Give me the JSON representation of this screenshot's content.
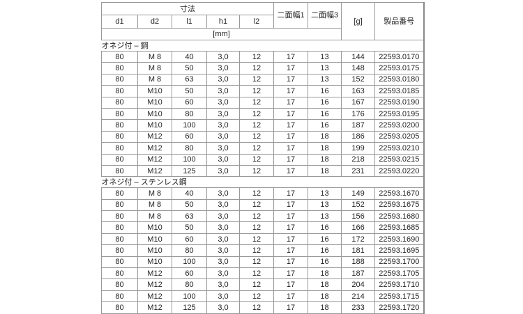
{
  "header": {
    "dimensions": "寸法",
    "cols": [
      "d1",
      "d2",
      "l1",
      "h1",
      "l2"
    ],
    "unit": "[mm]",
    "width1": "二面幅1",
    "width3": "二面幅3",
    "weight": "[g]",
    "part_no": "製品番号"
  },
  "sections": [
    {
      "title": "オネジ付 – 鋼",
      "rows": [
        [
          "80",
          "M 8",
          "40",
          "3,0",
          "12",
          "17",
          "13",
          "144",
          "22593.0170"
        ],
        [
          "80",
          "M 8",
          "50",
          "3,0",
          "12",
          "17",
          "13",
          "148",
          "22593.0175"
        ],
        [
          "80",
          "M 8",
          "63",
          "3,0",
          "12",
          "17",
          "13",
          "152",
          "22593.0180"
        ],
        [
          "80",
          "M10",
          "50",
          "3,0",
          "12",
          "17",
          "16",
          "163",
          "22593.0185"
        ],
        [
          "80",
          "M10",
          "60",
          "3,0",
          "12",
          "17",
          "16",
          "167",
          "22593.0190"
        ],
        [
          "80",
          "M10",
          "80",
          "3,0",
          "12",
          "17",
          "16",
          "176",
          "22593.0195"
        ],
        [
          "80",
          "M10",
          "100",
          "3,0",
          "12",
          "17",
          "16",
          "187",
          "22593.0200"
        ],
        [
          "80",
          "M12",
          "60",
          "3,0",
          "12",
          "17",
          "18",
          "186",
          "22593.0205"
        ],
        [
          "80",
          "M12",
          "80",
          "3,0",
          "12",
          "17",
          "18",
          "199",
          "22593.0210"
        ],
        [
          "80",
          "M12",
          "100",
          "3,0",
          "12",
          "17",
          "18",
          "218",
          "22593.0215"
        ],
        [
          "80",
          "M12",
          "125",
          "3,0",
          "12",
          "17",
          "18",
          "231",
          "22593.0220"
        ]
      ]
    },
    {
      "title": "オネジ付 – ステンレス鋼",
      "rows": [
        [
          "80",
          "M 8",
          "40",
          "3,0",
          "12",
          "17",
          "13",
          "149",
          "22593.1670"
        ],
        [
          "80",
          "M 8",
          "50",
          "3,0",
          "12",
          "17",
          "13",
          "152",
          "22593.1675"
        ],
        [
          "80",
          "M 8",
          "63",
          "3,0",
          "12",
          "17",
          "13",
          "156",
          "22593.1680"
        ],
        [
          "80",
          "M10",
          "50",
          "3,0",
          "12",
          "17",
          "16",
          "166",
          "22593.1685"
        ],
        [
          "80",
          "M10",
          "60",
          "3,0",
          "12",
          "17",
          "16",
          "172",
          "22593.1690"
        ],
        [
          "80",
          "M10",
          "80",
          "3,0",
          "12",
          "17",
          "16",
          "181",
          "22593.1695"
        ],
        [
          "80",
          "M10",
          "100",
          "3,0",
          "12",
          "17",
          "16",
          "188",
          "22593.1700"
        ],
        [
          "80",
          "M12",
          "60",
          "3,0",
          "12",
          "17",
          "18",
          "187",
          "22593.1705"
        ],
        [
          "80",
          "M12",
          "80",
          "3,0",
          "12",
          "17",
          "18",
          "204",
          "22593.1710"
        ],
        [
          "80",
          "M12",
          "100",
          "3,0",
          "12",
          "17",
          "18",
          "214",
          "22593.1715"
        ],
        [
          "80",
          "M12",
          "125",
          "3,0",
          "12",
          "17",
          "18",
          "233",
          "22593.1720"
        ]
      ]
    }
  ]
}
